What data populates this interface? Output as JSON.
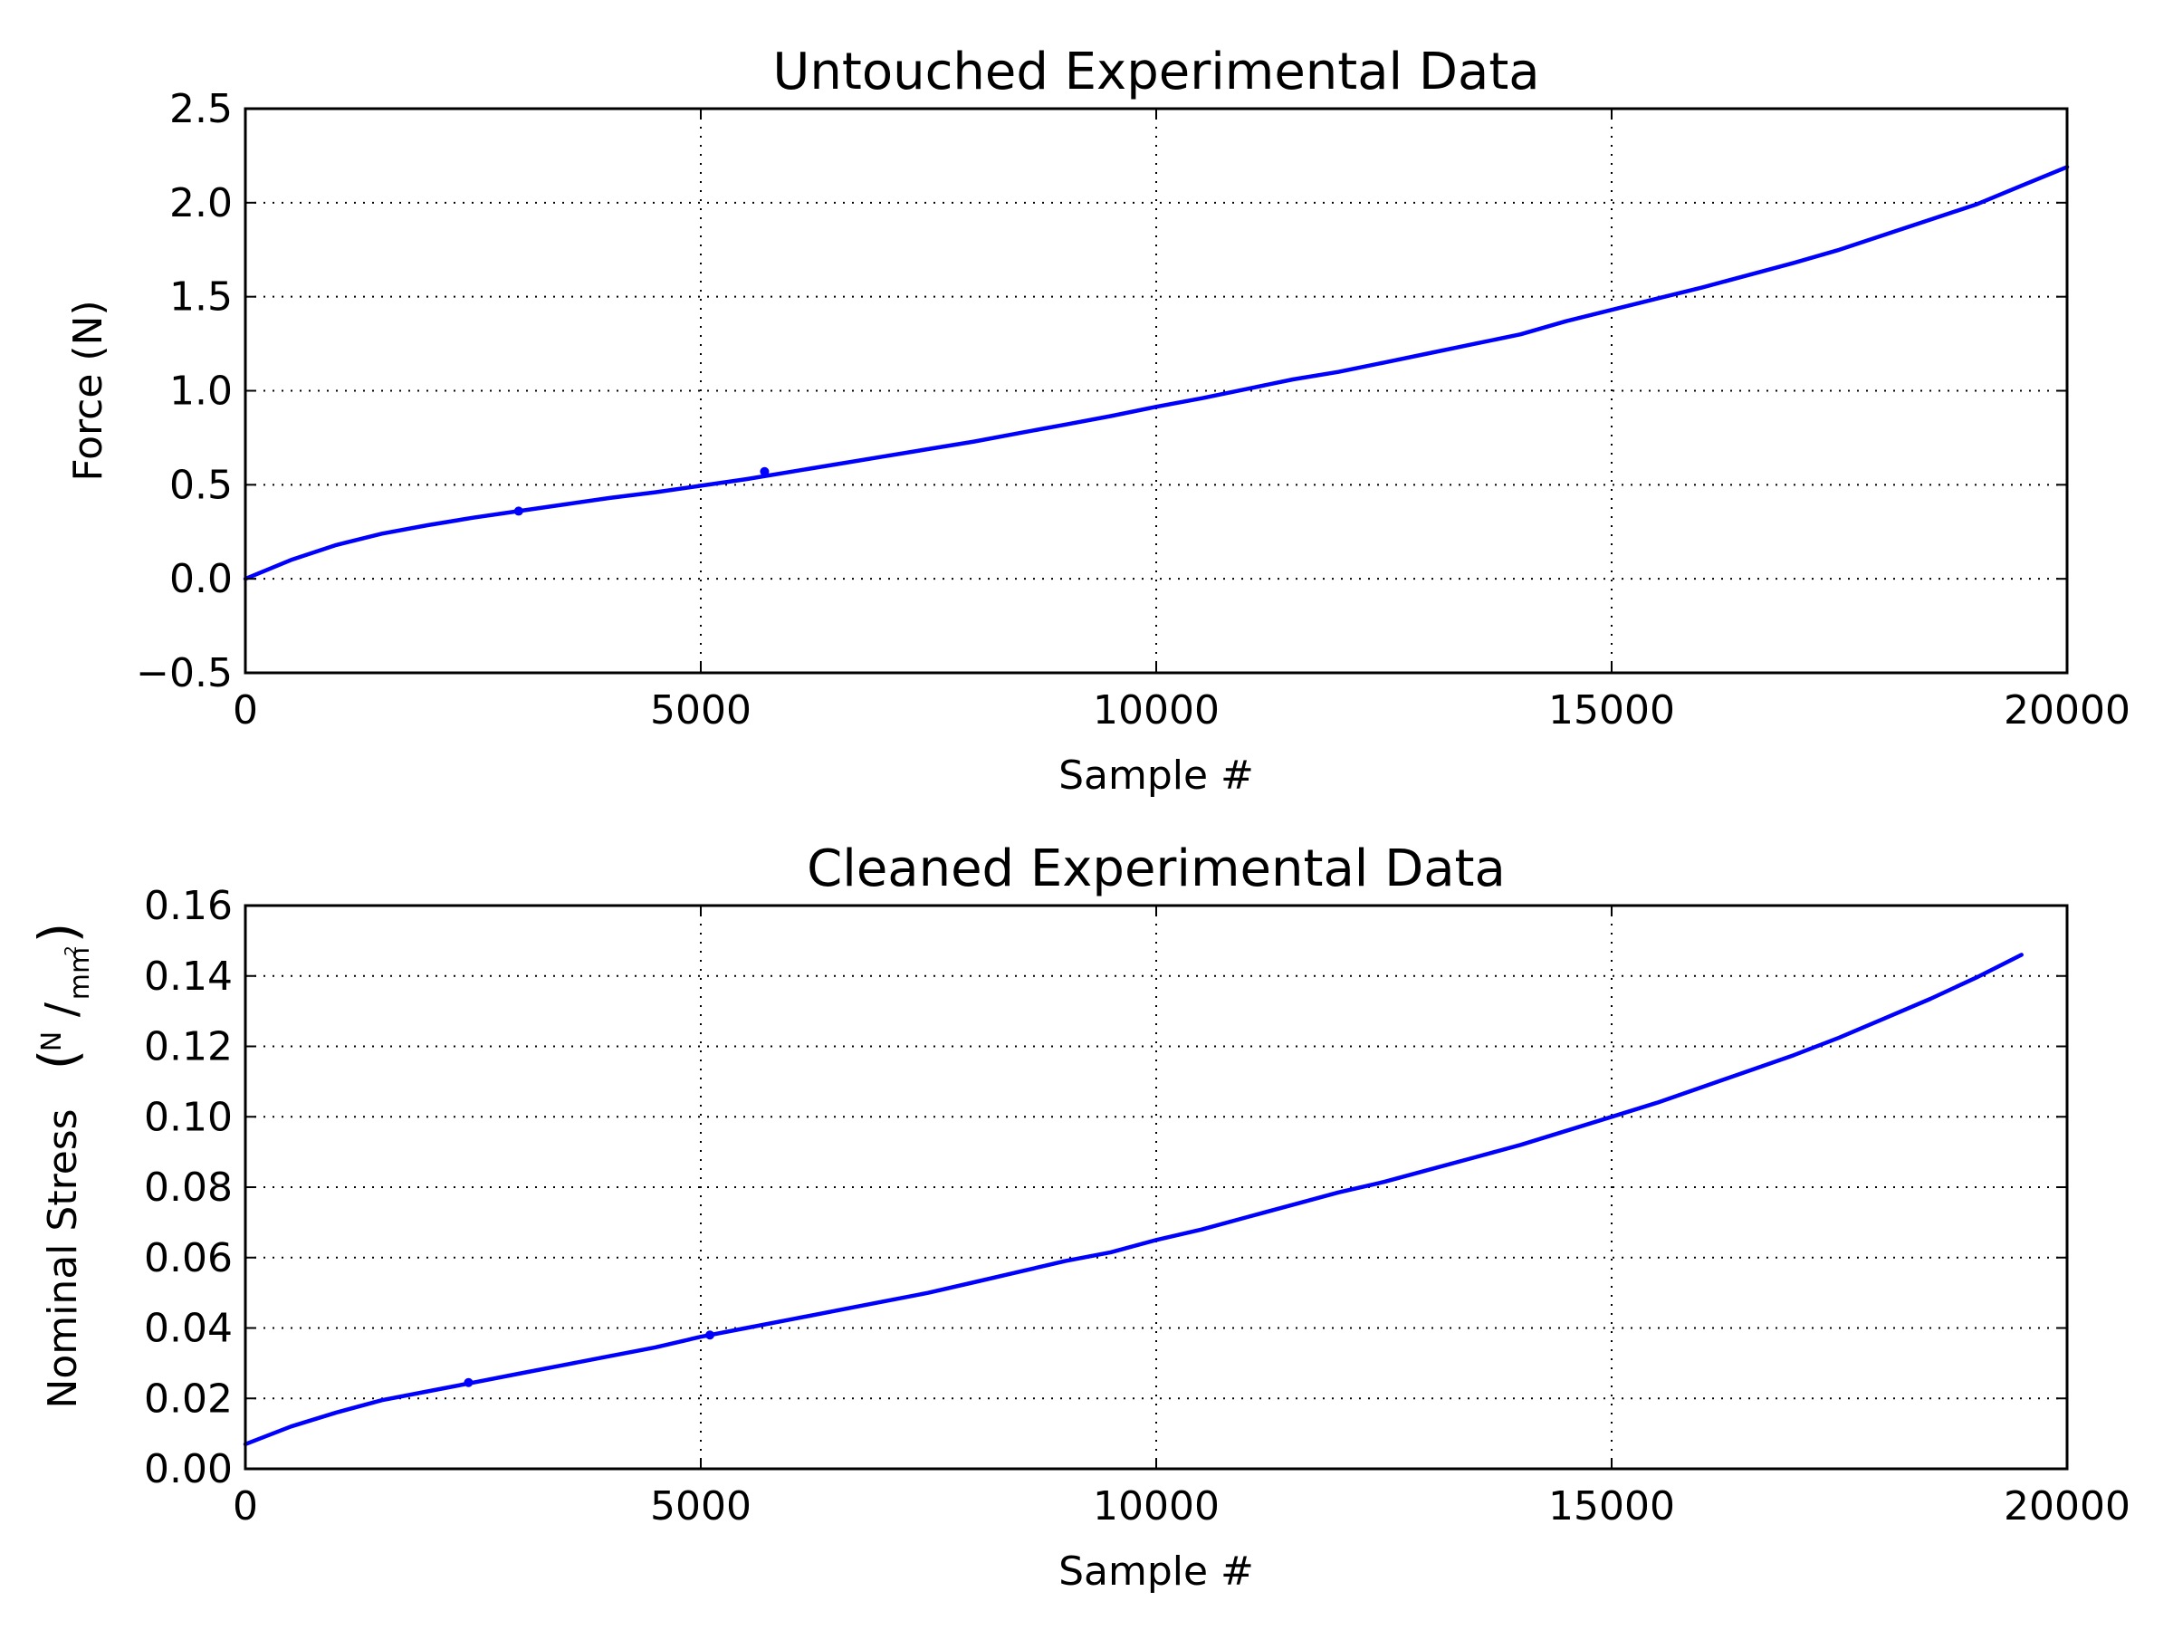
{
  "chart_data": [
    {
      "type": "line",
      "title": "Untouched Experimental Data",
      "xlabel": "Sample #",
      "ylabel": "Force (N)",
      "xlim": [
        0,
        20000
      ],
      "ylim": [
        -0.5,
        2.5
      ],
      "xticks": [
        0,
        5000,
        10000,
        15000,
        20000
      ],
      "xtick_labels": [
        "0",
        "5000",
        "10000",
        "15000",
        "20000"
      ],
      "yticks": [
        -0.5,
        0.0,
        0.5,
        1.0,
        1.5,
        2.0,
        2.5
      ],
      "ytick_labels": [
        "−0.5",
        "0.0",
        "0.5",
        "1.0",
        "1.5",
        "2.0",
        "2.5"
      ],
      "grid": true,
      "color": "#0000ff",
      "series": [
        {
          "x": [
            0,
            500,
            1000,
            1500,
            2000,
            2500,
            3000,
            3500,
            4000,
            4500,
            5000,
            5500,
            6000,
            6500,
            7000,
            7500,
            8000,
            8500,
            9000,
            9500,
            10000,
            10500,
            11000,
            11500,
            12000,
            12500,
            13000,
            13500,
            14000,
            14500,
            15000,
            15500,
            16000,
            16500,
            17000,
            17500,
            18000,
            18500,
            19000,
            19500,
            20000
          ],
          "values": [
            0.0,
            0.1,
            0.18,
            0.24,
            0.285,
            0.325,
            0.36,
            0.395,
            0.43,
            0.46,
            0.495,
            0.53,
            0.57,
            0.61,
            0.65,
            0.69,
            0.73,
            0.775,
            0.82,
            0.865,
            0.915,
            0.96,
            1.01,
            1.06,
            1.1,
            1.15,
            1.2,
            1.25,
            1.3,
            1.37,
            1.43,
            1.49,
            1.55,
            1.615,
            1.68,
            1.75,
            1.83,
            1.91,
            1.99,
            2.09,
            2.19
          ]
        }
      ],
      "markers": [
        {
          "x": 3000,
          "y": 0.36
        },
        {
          "x": 5700,
          "y": 0.57
        }
      ]
    },
    {
      "type": "line",
      "title": "Cleaned Experimental Data",
      "xlabel": "Sample #",
      "ylabel": "Nominal Stress",
      "ylabel_unit_num": "N",
      "ylabel_unit_den": "mm",
      "ylabel_unit_den_sup": "2",
      "xlim": [
        0,
        20000
      ],
      "ylim": [
        0.0,
        0.16
      ],
      "xticks": [
        0,
        5000,
        10000,
        15000,
        20000
      ],
      "xtick_labels": [
        "0",
        "5000",
        "10000",
        "15000",
        "20000"
      ],
      "yticks": [
        0.0,
        0.02,
        0.04,
        0.06,
        0.08,
        0.1,
        0.12,
        0.14,
        0.16
      ],
      "ytick_labels": [
        "0.00",
        "0.02",
        "0.04",
        "0.06",
        "0.08",
        "0.10",
        "0.12",
        "0.14",
        "0.16"
      ],
      "grid": true,
      "color": "#0000ff",
      "series": [
        {
          "x": [
            0,
            500,
            1000,
            1500,
            2000,
            2500,
            3000,
            3500,
            4000,
            4500,
            5000,
            5500,
            6000,
            6500,
            7000,
            7500,
            8000,
            8500,
            9000,
            9500,
            10000,
            10500,
            11000,
            11500,
            12000,
            12500,
            13000,
            13500,
            14000,
            14500,
            15000,
            15500,
            16000,
            16500,
            17000,
            17500,
            18000,
            18500,
            19000,
            19500
          ],
          "values": [
            0.007,
            0.012,
            0.016,
            0.0195,
            0.022,
            0.0245,
            0.027,
            0.0295,
            0.032,
            0.0345,
            0.0375,
            0.04,
            0.0425,
            0.045,
            0.0475,
            0.05,
            0.053,
            0.056,
            0.059,
            0.0615,
            0.065,
            0.068,
            0.0715,
            0.075,
            0.0785,
            0.0815,
            0.085,
            0.0885,
            0.092,
            0.096,
            0.1,
            0.104,
            0.1085,
            0.113,
            0.1175,
            0.1225,
            0.128,
            0.1335,
            0.1395,
            0.146
          ]
        }
      ],
      "markers": [
        {
          "x": 2450,
          "y": 0.0245
        },
        {
          "x": 5100,
          "y": 0.038
        }
      ]
    }
  ]
}
